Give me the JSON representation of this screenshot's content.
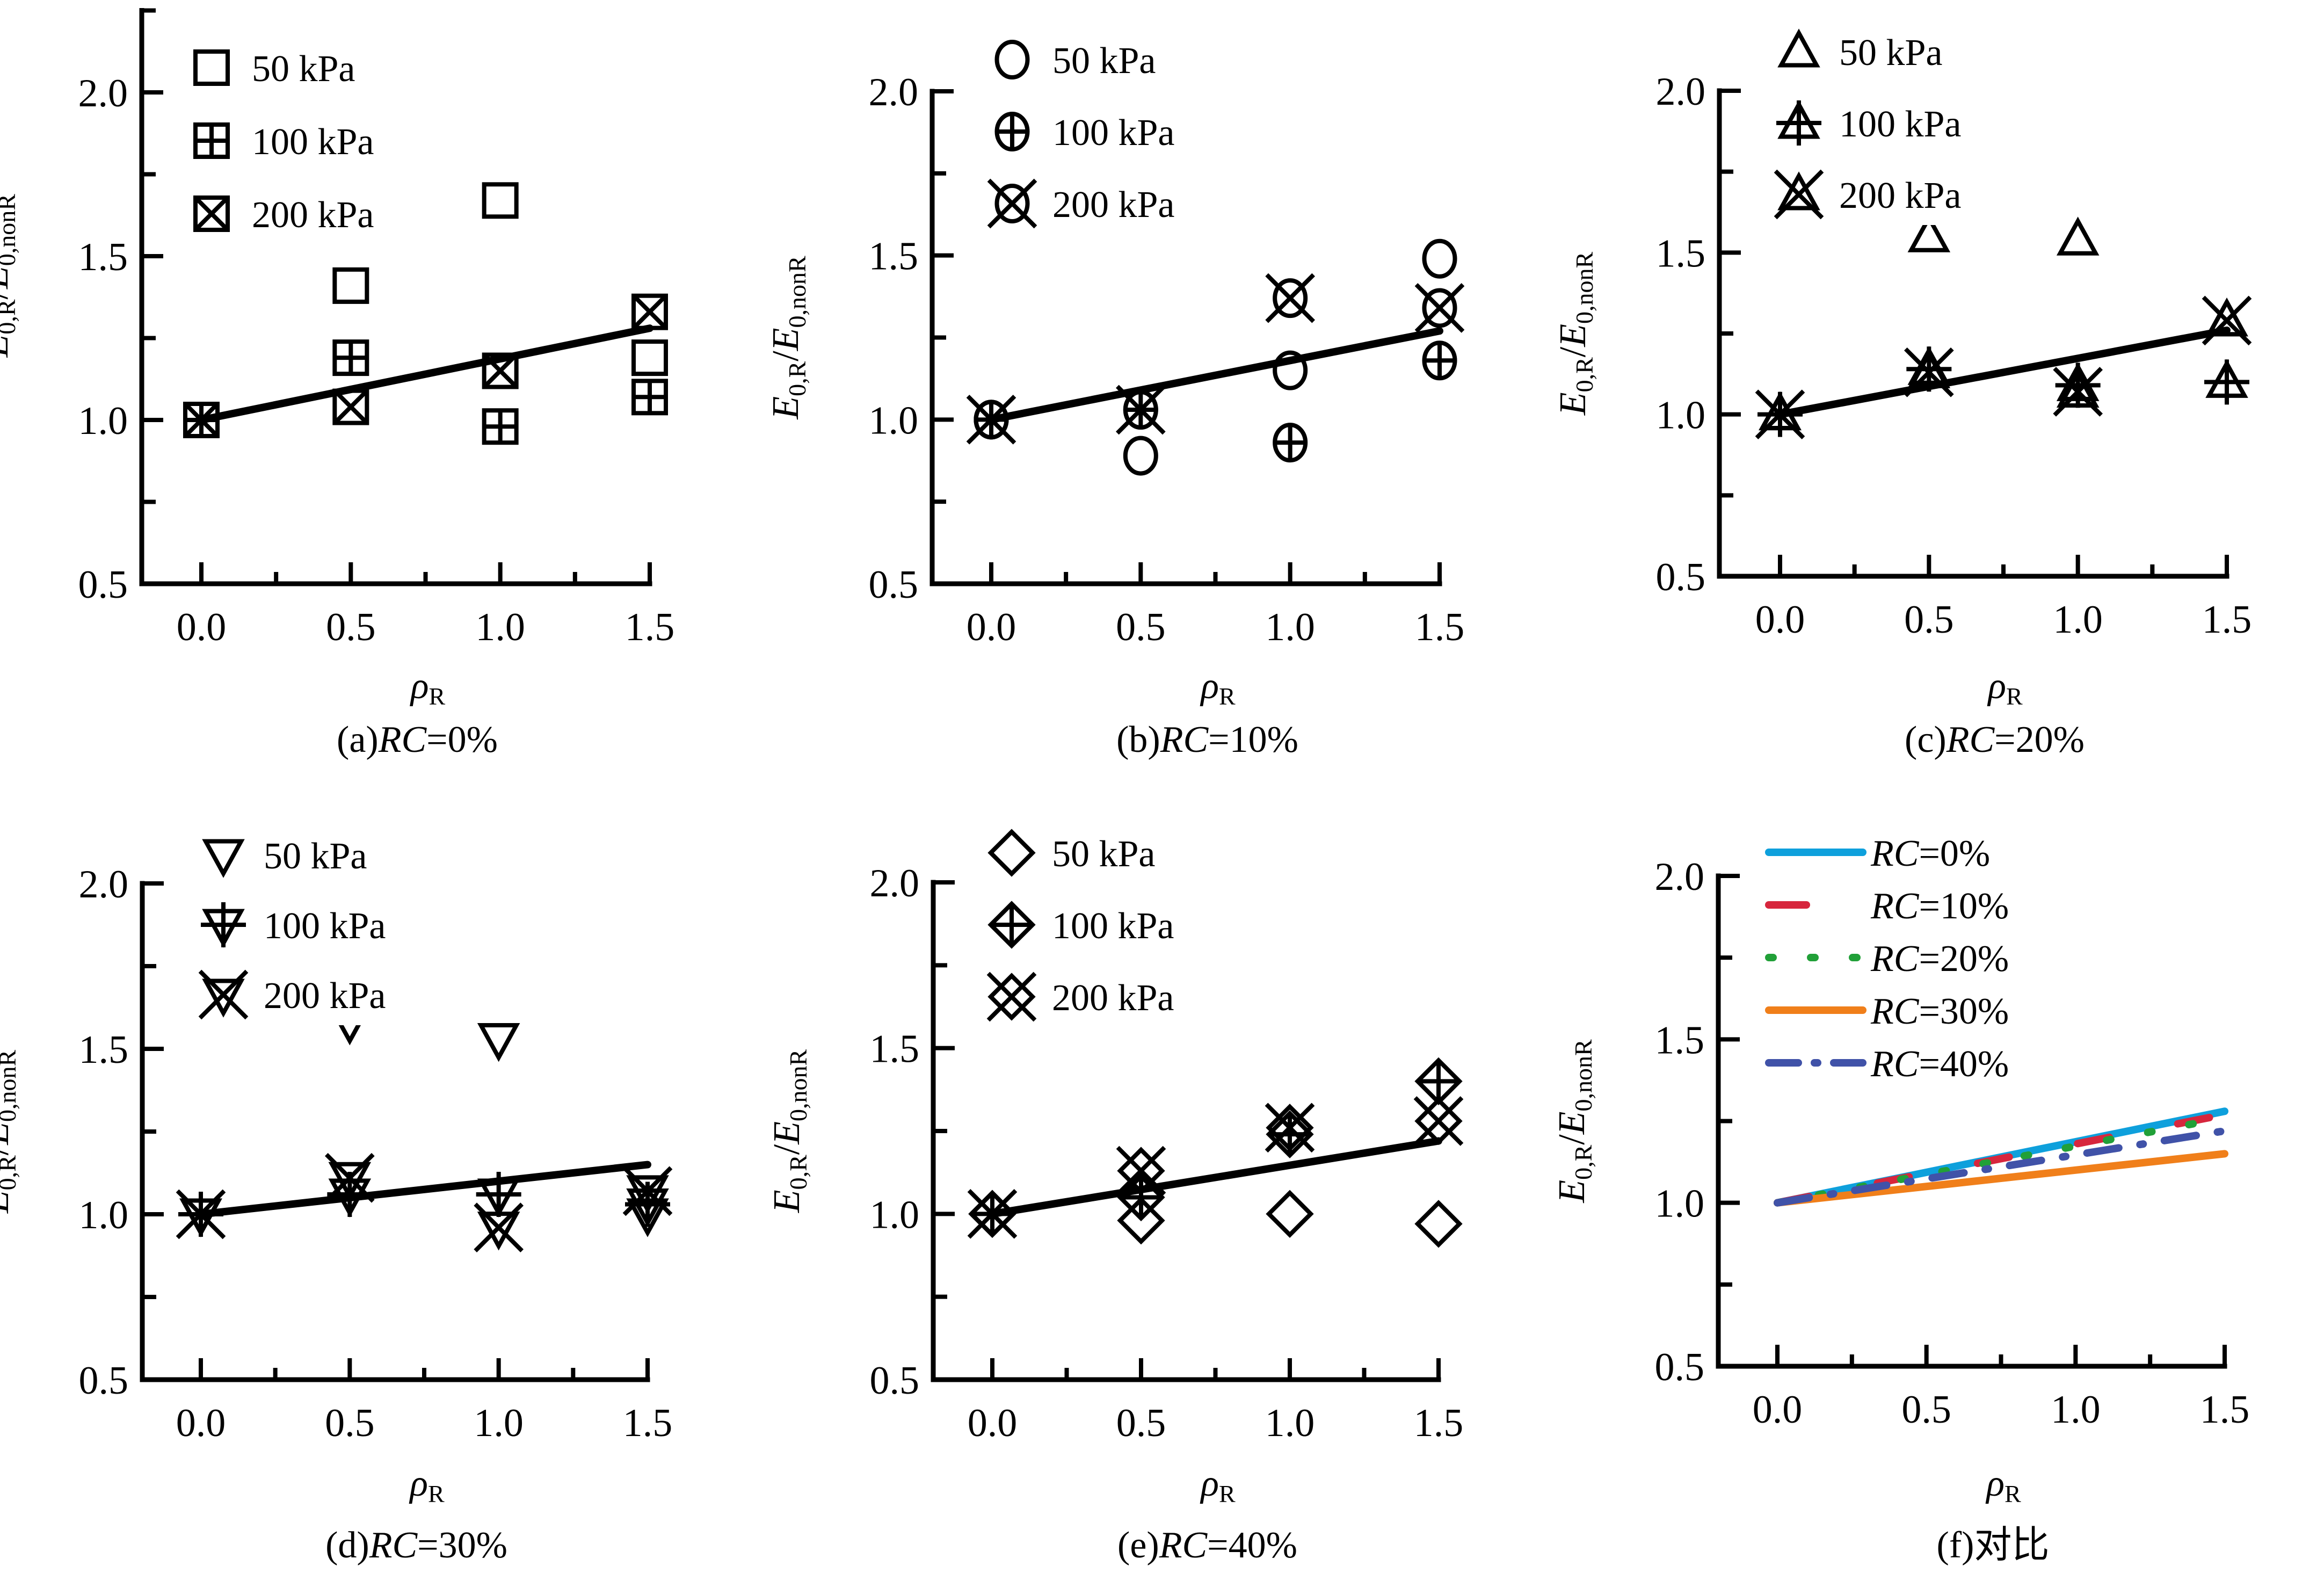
{
  "figure": {
    "y_axis_label": {
      "main": "E",
      "sub1": "0,R",
      "slash": "/",
      "main2": "E",
      "sub2": "0,nonR"
    },
    "x_axis_label": {
      "main": "ρ",
      "sub": "R"
    }
  },
  "chart_data": [
    {
      "id": "a",
      "type": "scatter",
      "caption": {
        "prefix": "(a)",
        "italic": "RC",
        "suffix": "=0%"
      },
      "xlabel": "ρR",
      "ylabel": "E0,R/E0,nonR",
      "xlim": [
        -0.2,
        1.5
      ],
      "ylim": [
        0.5,
        2.25
      ],
      "x_ticks": [
        "0.0",
        "0.5",
        "1.0",
        "1.5"
      ],
      "y_ticks": [
        "0.5",
        "1.0",
        "1.5",
        "2.0"
      ],
      "marker_shape": "square",
      "legend_position": "top-left",
      "x": [
        0.0,
        0.5,
        1.0,
        1.5
      ],
      "series": [
        {
          "name": "50 kPa",
          "variant": "plain",
          "values": [
            1.0,
            1.41,
            1.67,
            1.19
          ]
        },
        {
          "name": "100 kPa",
          "variant": "plus",
          "values": [
            1.0,
            1.19,
            0.98,
            1.07
          ]
        },
        {
          "name": "200 kPa",
          "variant": "cross",
          "values": [
            1.0,
            1.04,
            1.15,
            1.33
          ]
        }
      ],
      "fit_line": {
        "x": [
          0.0,
          1.5
        ],
        "y": [
          1.0,
          1.28
        ]
      }
    },
    {
      "id": "b",
      "type": "scatter",
      "caption": {
        "prefix": "(b)",
        "italic": "RC",
        "suffix": "=10%"
      },
      "xlabel": "ρR",
      "ylabel": "E0,R/E0,nonR",
      "xlim": [
        -0.2,
        1.5
      ],
      "ylim": [
        0.5,
        2.0
      ],
      "x_ticks": [
        "0.0",
        "0.5",
        "1.0",
        "1.5"
      ],
      "y_ticks": [
        "0.5",
        "1.0",
        "1.5",
        "2.0"
      ],
      "marker_shape": "circle",
      "legend_position": "top-left",
      "x": [
        0.0,
        0.5,
        1.0,
        1.5
      ],
      "series": [
        {
          "name": "50 kPa",
          "variant": "plain",
          "values": [
            1.0,
            0.89,
            1.15,
            1.49
          ]
        },
        {
          "name": "100 kPa",
          "variant": "plus",
          "values": [
            1.0,
            1.03,
            0.93,
            1.18
          ]
        },
        {
          "name": "200 kPa",
          "variant": "cross",
          "values": [
            1.0,
            1.03,
            1.37,
            1.34
          ]
        }
      ],
      "fit_line": {
        "x": [
          0.0,
          1.5
        ],
        "y": [
          1.0,
          1.27
        ]
      }
    },
    {
      "id": "c",
      "type": "scatter",
      "caption": {
        "prefix": "(c)",
        "italic": "RC",
        "suffix": "=20%"
      },
      "xlabel": "ρR",
      "ylabel": "E0,R/E0,nonR",
      "xlim": [
        -0.2,
        1.5
      ],
      "ylim": [
        0.5,
        2.0
      ],
      "x_ticks": [
        "0.0",
        "0.5",
        "1.0",
        "1.5"
      ],
      "y_ticks": [
        "0.5",
        "1.0",
        "1.5",
        "2.0"
      ],
      "marker_shape": "triangle-up",
      "legend_position": "top-left",
      "x": [
        0.0,
        0.5,
        1.0,
        1.5
      ],
      "series": [
        {
          "name": "50 kPa",
          "variant": "plain",
          "values": [
            1.0,
            1.55,
            1.54,
            1.29
          ]
        },
        {
          "name": "100 kPa",
          "variant": "plus",
          "values": [
            1.0,
            1.14,
            1.09,
            1.1
          ]
        },
        {
          "name": "200 kPa",
          "variant": "cross",
          "values": [
            1.0,
            1.13,
            1.07,
            1.29
          ]
        }
      ],
      "fit_line": {
        "x": [
          0.0,
          1.5
        ],
        "y": [
          1.0,
          1.26
        ]
      }
    },
    {
      "id": "d",
      "type": "scatter",
      "caption": {
        "prefix": "(d)",
        "italic": "RC",
        "suffix": "=30%"
      },
      "xlabel": "ρR",
      "ylabel": "E0,R/E0,nonR",
      "xlim": [
        -0.2,
        1.5
      ],
      "ylim": [
        0.5,
        2.0
      ],
      "x_ticks": [
        "0.0",
        "0.5",
        "1.0",
        "1.5"
      ],
      "y_ticks": [
        "0.5",
        "1.0",
        "1.5",
        "2.0"
      ],
      "marker_shape": "triangle-down",
      "legend_position": "top-left",
      "x": [
        0.0,
        0.5,
        1.0,
        1.5
      ],
      "series": [
        {
          "name": "50 kPa",
          "variant": "plain",
          "values": [
            1.0,
            1.58,
            1.53,
            1.0
          ]
        },
        {
          "name": "100 kPa",
          "variant": "plus",
          "values": [
            1.0,
            1.06,
            1.06,
            1.03
          ]
        },
        {
          "name": "200 kPa",
          "variant": "cross",
          "values": [
            1.0,
            1.11,
            0.96,
            1.07
          ]
        }
      ],
      "fit_line": {
        "x": [
          0.0,
          1.5
        ],
        "y": [
          1.0,
          1.15
        ]
      }
    },
    {
      "id": "e",
      "type": "scatter",
      "caption": {
        "prefix": "(e)",
        "italic": "RC",
        "suffix": "=40%"
      },
      "xlabel": "ρR",
      "ylabel": "E0,R/E0,nonR",
      "xlim": [
        -0.2,
        1.5
      ],
      "ylim": [
        0.5,
        2.0
      ],
      "x_ticks": [
        "0.0",
        "0.5",
        "1.0",
        "1.5"
      ],
      "y_ticks": [
        "0.5",
        "1.0",
        "1.5",
        "2.0"
      ],
      "marker_shape": "diamond",
      "legend_position": "top-left",
      "x": [
        0.0,
        0.5,
        1.0,
        1.5
      ],
      "series": [
        {
          "name": "50 kPa",
          "variant": "plain",
          "values": [
            1.0,
            0.98,
            1.0,
            0.97
          ]
        },
        {
          "name": "100 kPa",
          "variant": "plus",
          "values": [
            1.0,
            1.05,
            1.24,
            1.4
          ]
        },
        {
          "name": "200 kPa",
          "variant": "cross",
          "values": [
            1.0,
            1.13,
            1.26,
            1.28
          ]
        }
      ],
      "fit_line": {
        "x": [
          0.0,
          1.5
        ],
        "y": [
          1.0,
          1.22
        ]
      }
    },
    {
      "id": "f",
      "type": "line",
      "caption": {
        "prefix": "(f)",
        "italic": "",
        "suffix": "对比"
      },
      "xlabel": "ρR",
      "ylabel": "E0,R/E0,nonR",
      "xlim": [
        -0.2,
        1.5
      ],
      "ylim": [
        0.5,
        2.0
      ],
      "x_ticks": [
        "0.0",
        "0.5",
        "1.0",
        "1.5"
      ],
      "y_ticks": [
        "0.5",
        "1.0",
        "1.5",
        "2.0"
      ],
      "legend_position": "top-left",
      "x": [
        0.0,
        1.5
      ],
      "series": [
        {
          "name_italic": "RC",
          "name": "=0%",
          "color": "#0EA0DC",
          "dash": "solid",
          "values": [
            1.0,
            1.28
          ]
        },
        {
          "name_italic": "RC",
          "name": "=10%",
          "color": "#D7263D",
          "dash": "dash",
          "values": [
            1.0,
            1.27
          ]
        },
        {
          "name_italic": "RC",
          "name": "=20%",
          "color": "#21A038",
          "dash": "dot",
          "values": [
            1.0,
            1.26
          ]
        },
        {
          "name_italic": "RC",
          "name": "=30%",
          "color": "#F07F1A",
          "dash": "solid",
          "values": [
            1.0,
            1.15
          ]
        },
        {
          "name_italic": "RC",
          "name": "=40%",
          "color": "#4052A8",
          "dash": "dashdot",
          "values": [
            1.0,
            1.22
          ]
        }
      ]
    }
  ]
}
